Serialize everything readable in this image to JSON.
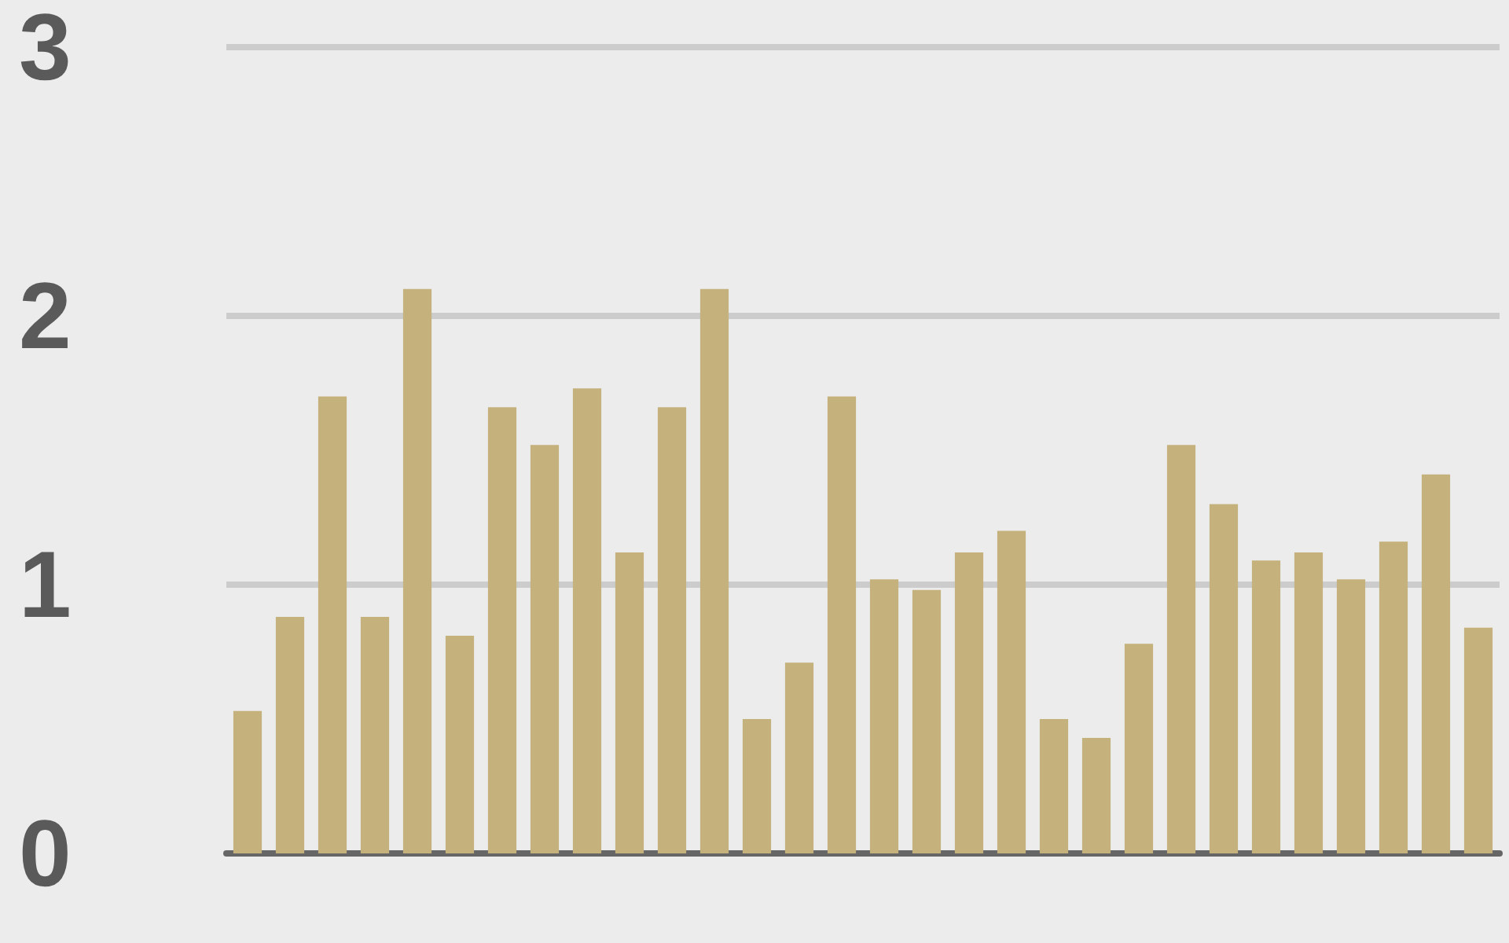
{
  "chart_data": {
    "type": "bar",
    "relative": false,
    "categories": [
      null,
      null,
      null,
      null,
      null,
      null,
      null,
      null,
      null,
      null,
      null,
      null,
      null,
      null,
      null,
      null,
      null,
      null,
      null,
      null,
      null,
      null,
      null,
      null,
      null,
      null,
      null,
      null,
      null,
      null
    ],
    "values": [
      0.53,
      0.88,
      1.7,
      0.88,
      2.1,
      0.81,
      1.66,
      1.52,
      1.73,
      1.12,
      1.66,
      2.1,
      0.5,
      0.71,
      1.7,
      1.02,
      0.98,
      1.12,
      1.2,
      0.5,
      0.43,
      0.78,
      1.52,
      1.3,
      1.09,
      1.12,
      1.02,
      1.16,
      1.41,
      0.84
    ],
    "color": "#c5b17b",
    "ylim": [
      0,
      3
    ],
    "yticks": [
      0,
      1,
      2,
      3
    ],
    "grid": "y",
    "tick_labels": "y"
  }
}
